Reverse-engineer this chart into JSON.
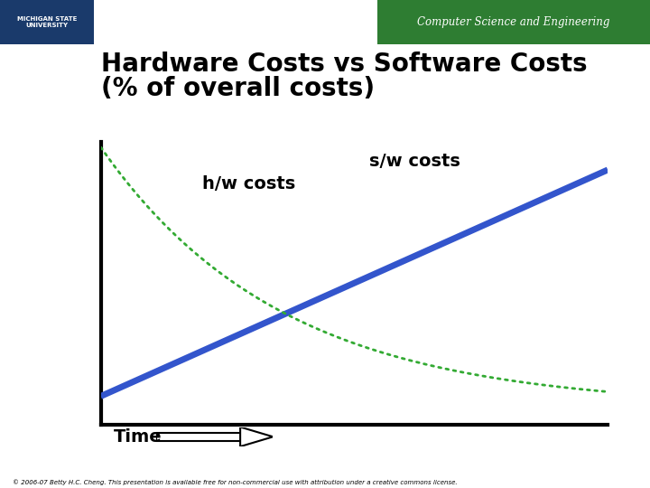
{
  "title_line1": "Hardware Costs vs Software Costs",
  "title_line2": "(% of overall costs)",
  "sw_label": "s/w costs",
  "hw_label": "h/w costs",
  "xlabel": "Time",
  "sw_color": "#3355cc",
  "hw_color": "#33aa33",
  "background_color": "#ffffff",
  "title_fontsize": 20,
  "label_fontsize": 14,
  "footer": "© 2006-07 Betty H.C. Cheng. This presentation is available free for non-commercial use with attribution under a creative commons license.",
  "header_bg_color": "#2e7d32",
  "header_text": "Computer Science and Engineering",
  "msu_bg_color": "#1a3a6b",
  "figwidth": 7.2,
  "figheight": 5.4,
  "dpi": 100
}
